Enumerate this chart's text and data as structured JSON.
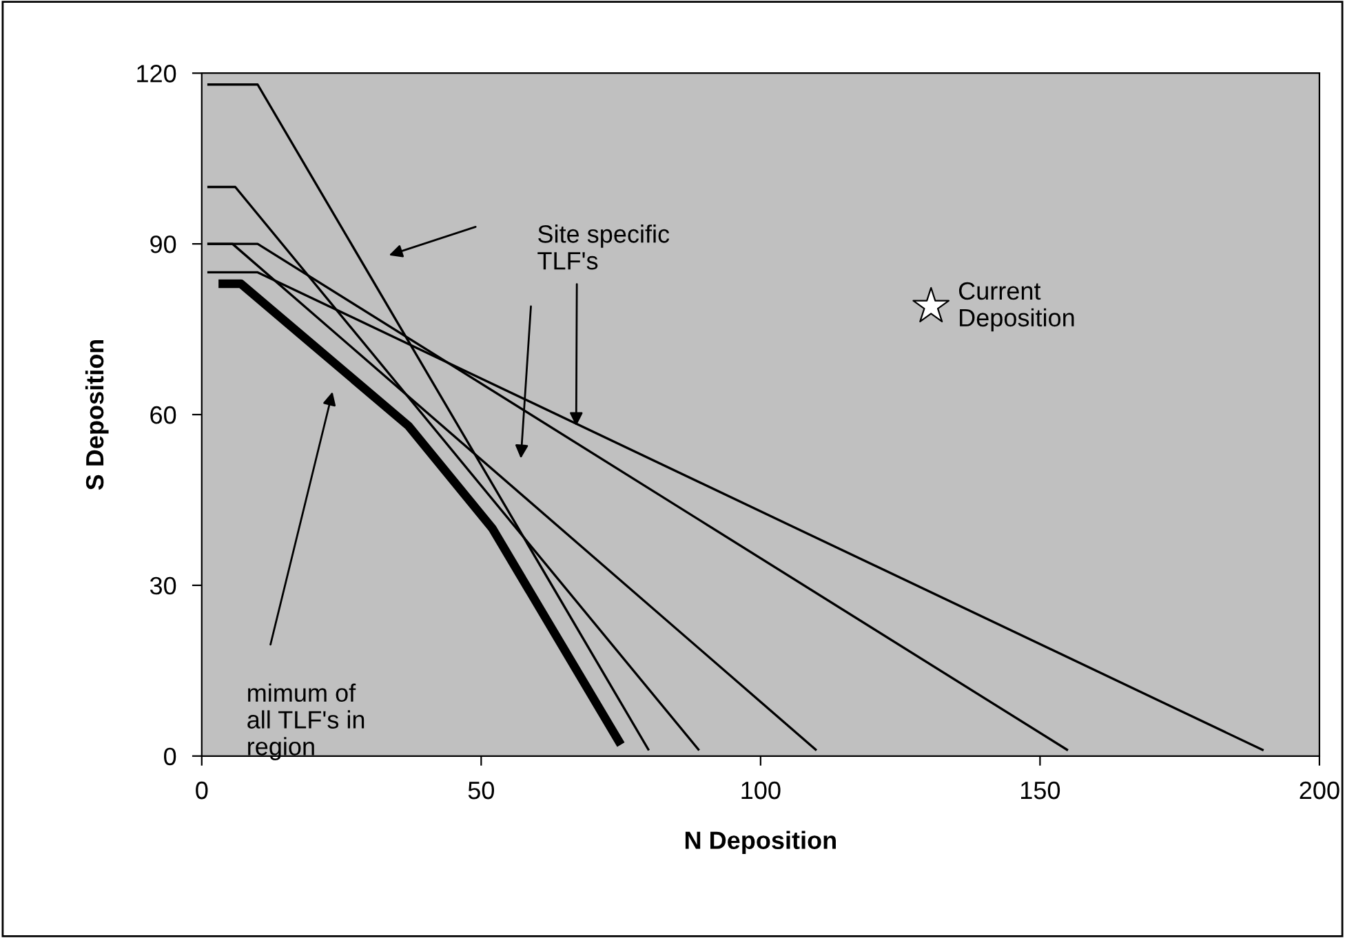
{
  "chart_data": {
    "type": "line",
    "xlabel": "N Deposition",
    "ylabel": "S Deposition",
    "xlim": [
      0,
      200
    ],
    "ylim": [
      0,
      120
    ],
    "xticks": [
      0,
      50,
      100,
      150,
      200
    ],
    "yticks": [
      0,
      30,
      60,
      90,
      120
    ],
    "grid": false,
    "marker": "none",
    "line_style": "solid",
    "series": [
      {
        "color": "#000000",
        "x": [
          1,
          10,
          80
        ],
        "values": [
          118,
          118,
          1
        ]
      },
      {
        "color": "#000000",
        "x": [
          1,
          6,
          89
        ],
        "values": [
          100,
          100,
          1
        ]
      },
      {
        "color": "#000000",
        "x": [
          1,
          5.5,
          110
        ],
        "values": [
          90,
          90,
          1
        ]
      },
      {
        "color": "#000000",
        "x": [
          1,
          10,
          155
        ],
        "values": [
          90,
          90,
          1
        ]
      },
      {
        "color": "#000000",
        "x": [
          1,
          10,
          190
        ],
        "values": [
          85,
          85,
          1
        ]
      },
      {
        "color": "#000000",
        "x": [
          3,
          7,
          37,
          52,
          75
        ],
        "values": [
          83,
          83,
          58,
          40,
          2
        ]
      },
      {
        "type": "scatter",
        "name": "Current Deposition",
        "marker": "star",
        "color": "#ffffff",
        "x": [
          130.5
        ],
        "values": [
          79
        ]
      }
    ],
    "annotations": [
      {
        "text": "Site specific\nTLF's",
        "x": 67,
        "y": 58
      },
      "mimum of\nall TLF's in\nregion"
    ]
  }
}
